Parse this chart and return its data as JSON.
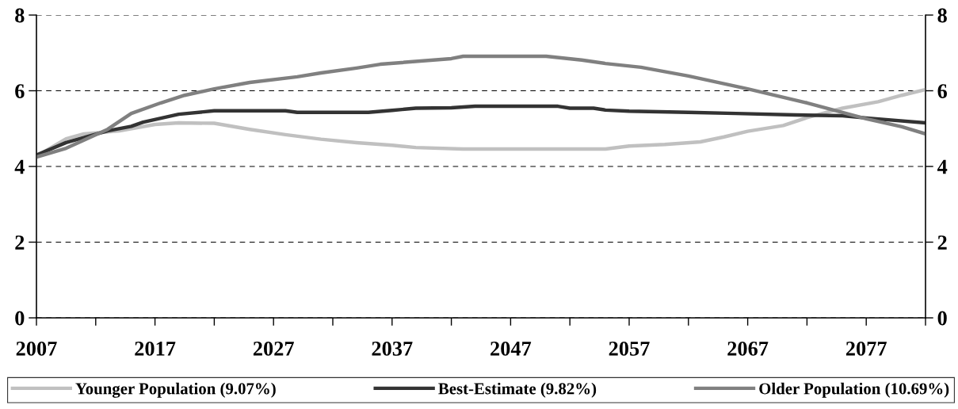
{
  "chart_data": {
    "type": "line",
    "xlim": [
      2007,
      2082
    ],
    "ylim": [
      0,
      8
    ],
    "yticks": [
      0,
      2,
      4,
      6,
      8
    ],
    "y2lim": [
      0,
      8
    ],
    "y2ticks": [
      0,
      2,
      4,
      6,
      8
    ],
    "xticks": [
      2007,
      {
        "value": 2012,
        "label": null
      },
      2017,
      {
        "value": 2022,
        "label": null
      },
      2027,
      {
        "value": 2032,
        "label": null
      },
      2037,
      {
        "value": 2042,
        "label": null
      },
      2047,
      {
        "value": 2052,
        "label": null
      },
      2057,
      {
        "value": 2062,
        "label": null
      },
      2067,
      {
        "value": 2072,
        "label": null
      },
      2077,
      {
        "value": 2082,
        "label": null
      }
    ],
    "grid": "y",
    "legend": "bottom",
    "marker": "none",
    "line_style": "solid",
    "series": [
      {
        "name": "Younger Population (9.07%)",
        "color": "#c0c0c0",
        "x": [
          2007,
          2009.5,
          2011,
          2014,
          2017,
          2019,
          2022,
          2025,
          2028,
          2031,
          2034,
          2037,
          2039,
          2043,
          2055,
          2057,
          2060,
          2063,
          2065,
          2067,
          2070,
          2072,
          2075,
          2078,
          2080,
          2082
        ],
        "values": [
          4.27,
          4.73,
          4.86,
          4.94,
          5.11,
          5.15,
          5.14,
          4.98,
          4.84,
          4.72,
          4.63,
          4.56,
          4.5,
          4.46,
          4.46,
          4.54,
          4.58,
          4.65,
          4.78,
          4.93,
          5.08,
          5.29,
          5.54,
          5.71,
          5.88,
          6.03
        ]
      },
      {
        "name": "Best-Estimate (9.82%)",
        "color": "#333333",
        "x": [
          2007,
          2009.5,
          2013,
          2015,
          2016,
          2019,
          2022,
          2028,
          2029,
          2035,
          2037,
          2039,
          2042,
          2044,
          2051,
          2052,
          2054,
          2055,
          2057,
          2062,
          2066,
          2071,
          2075,
          2077,
          2082
        ],
        "values": [
          4.3,
          4.63,
          4.94,
          5.06,
          5.17,
          5.38,
          5.47,
          5.47,
          5.43,
          5.43,
          5.48,
          5.54,
          5.55,
          5.59,
          5.59,
          5.54,
          5.54,
          5.49,
          5.46,
          5.43,
          5.4,
          5.36,
          5.34,
          5.28,
          5.15
        ]
      },
      {
        "name": "Older Population (10.69%)",
        "color": "#808080",
        "x": [
          2007,
          2009.5,
          2013,
          2015,
          2017.5,
          2019.5,
          2022,
          2025,
          2029,
          2031,
          2034,
          2036,
          2042,
          2043,
          2050,
          2053,
          2055,
          2058,
          2062,
          2067,
          2072,
          2077,
          2080,
          2082
        ],
        "values": [
          4.25,
          4.48,
          4.98,
          5.4,
          5.68,
          5.88,
          6.05,
          6.22,
          6.37,
          6.47,
          6.6,
          6.7,
          6.85,
          6.91,
          6.91,
          6.81,
          6.72,
          6.62,
          6.39,
          6.05,
          5.68,
          5.26,
          5.05,
          4.86
        ]
      }
    ]
  }
}
